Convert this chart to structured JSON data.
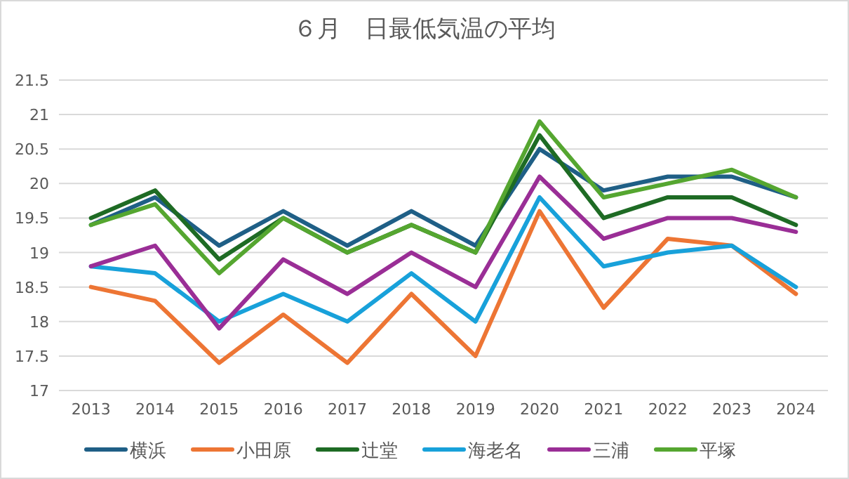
{
  "chart_data": {
    "type": "line",
    "title": "６月　日最低気温の平均",
    "categories": [
      "2013",
      "2014",
      "2015",
      "2016",
      "2017",
      "2018",
      "2019",
      "2020",
      "2021",
      "2022",
      "2023",
      "2024"
    ],
    "series": [
      {
        "name": "横浜",
        "color": "#1f5f86",
        "values": [
          19.4,
          19.8,
          19.1,
          19.6,
          19.1,
          19.6,
          19.1,
          20.5,
          19.9,
          20.1,
          20.1,
          19.8
        ]
      },
      {
        "name": "小田原",
        "color": "#ed7534",
        "values": [
          18.5,
          18.3,
          17.4,
          18.1,
          17.4,
          18.4,
          17.5,
          19.6,
          18.2,
          19.2,
          19.1,
          18.4
        ]
      },
      {
        "name": "辻堂",
        "color": "#1e6b24",
        "values": [
          19.5,
          19.9,
          18.9,
          19.5,
          19.0,
          19.4,
          19.0,
          20.7,
          19.5,
          19.8,
          19.8,
          19.4
        ]
      },
      {
        "name": "海老名",
        "color": "#18a1da",
        "values": [
          18.8,
          18.7,
          18.0,
          18.4,
          18.0,
          18.7,
          18.0,
          19.8,
          18.8,
          19.0,
          19.1,
          18.5
        ]
      },
      {
        "name": "三浦",
        "color": "#9a2e96",
        "values": [
          18.8,
          19.1,
          17.9,
          18.9,
          18.4,
          19.0,
          18.5,
          20.1,
          19.2,
          19.5,
          19.5,
          19.3
        ]
      },
      {
        "name": "平塚",
        "color": "#55a630",
        "values": [
          19.4,
          19.7,
          18.7,
          19.5,
          19.0,
          19.4,
          19.0,
          20.9,
          19.8,
          20.0,
          20.2,
          19.8
        ]
      }
    ],
    "ylim": [
      17,
      21.5
    ],
    "yticks": [
      17,
      17.5,
      18,
      18.5,
      19,
      19.5,
      20,
      20.5,
      21,
      21.5
    ],
    "grid": "y",
    "legend": "bottom",
    "marker": "none",
    "line_style": "solid"
  }
}
